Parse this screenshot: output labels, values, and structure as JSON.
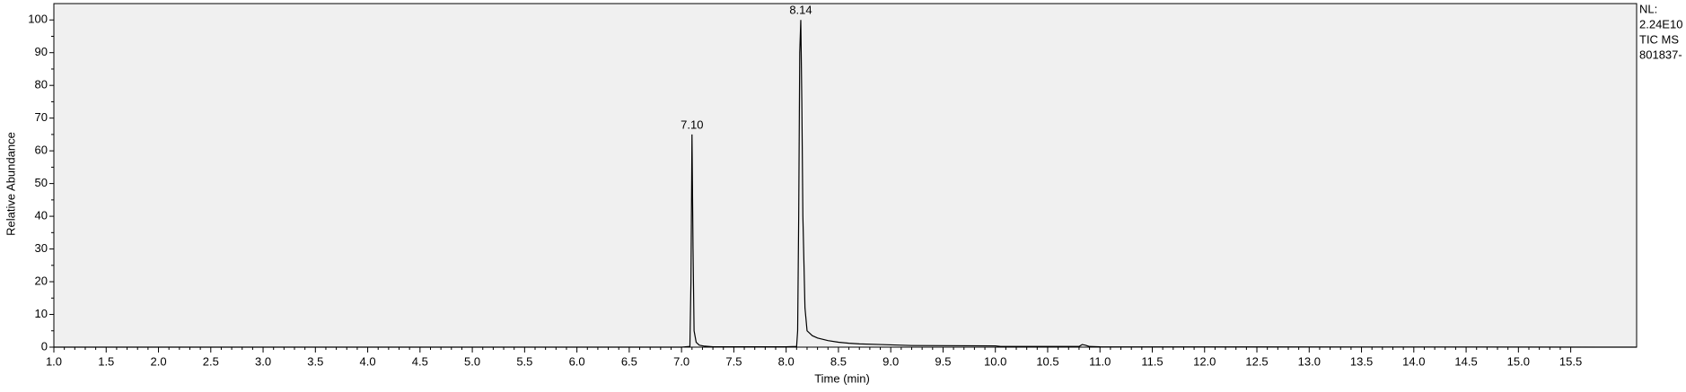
{
  "chart_data": {
    "type": "line",
    "xlabel": "Time (min)",
    "ylabel": "Relative Abundance",
    "side_text": [
      "NL:",
      "2.24E10",
      "TIC  MS",
      "801837-"
    ],
    "xlim": [
      1.0,
      16.13
    ],
    "ylim": [
      0,
      105
    ],
    "xticks": [
      {
        "value": 1.0,
        "label": "1.0"
      },
      {
        "value": 1.5,
        "label": "1.5"
      },
      {
        "value": 2.0,
        "label": "2.0"
      },
      {
        "value": 2.5,
        "label": "2.5"
      },
      {
        "value": 3.0,
        "label": "3.0"
      },
      {
        "value": 3.5,
        "label": "3.5"
      },
      {
        "value": 4.0,
        "label": "4.0"
      },
      {
        "value": 4.5,
        "label": "4.5"
      },
      {
        "value": 5.0,
        "label": "5.0"
      },
      {
        "value": 5.5,
        "label": "5.5"
      },
      {
        "value": 6.0,
        "label": "6.0"
      },
      {
        "value": 6.5,
        "label": "6.5"
      },
      {
        "value": 7.0,
        "label": "7.0"
      },
      {
        "value": 7.5,
        "label": "7.5"
      },
      {
        "value": 8.0,
        "label": "8.0"
      },
      {
        "value": 8.5,
        "label": "8.5"
      },
      {
        "value": 9.0,
        "label": "9.0"
      },
      {
        "value": 9.5,
        "label": "9.5"
      },
      {
        "value": 10.0,
        "label": "10.0"
      },
      {
        "value": 10.5,
        "label": "10.5"
      },
      {
        "value": 11.0,
        "label": "11.0"
      },
      {
        "value": 11.5,
        "label": "11.5"
      },
      {
        "value": 12.0,
        "label": "12.0"
      },
      {
        "value": 12.5,
        "label": "12.5"
      },
      {
        "value": 13.0,
        "label": "13.0"
      },
      {
        "value": 13.5,
        "label": "13.5"
      },
      {
        "value": 14.0,
        "label": "14.0"
      },
      {
        "value": 14.5,
        "label": "14.5"
      },
      {
        "value": 15.0,
        "label": "15.0"
      },
      {
        "value": 15.5,
        "label": "15.5"
      }
    ],
    "yticks": [
      0,
      10,
      20,
      30,
      40,
      50,
      60,
      70,
      80,
      90,
      100
    ],
    "annotations": [
      {
        "text": "7.10",
        "x": 7.1,
        "y": 65
      },
      {
        "text": "8.14",
        "x": 8.14,
        "y": 100
      }
    ],
    "series": [
      {
        "color": "#000000",
        "x": [
          1.0,
          7.0,
          7.08,
          7.09,
          7.1,
          7.11,
          7.12,
          7.14,
          7.17,
          7.22,
          7.3,
          8.0,
          8.1,
          8.11,
          8.12,
          8.13,
          8.14,
          8.15,
          8.16,
          8.18,
          8.2,
          8.25,
          8.3,
          8.4,
          8.5,
          8.6,
          8.7,
          8.9,
          9.1,
          9.2,
          10.0,
          10.05,
          10.8,
          10.83,
          10.86,
          10.9,
          11.0,
          16.13
        ],
        "values": [
          0,
          0,
          0.2,
          20,
          65,
          30,
          5,
          1.5,
          0.6,
          0.3,
          0.1,
          0.1,
          0.2,
          5,
          40,
          90,
          100,
          75,
          40,
          12,
          5,
          3.5,
          2.8,
          2.0,
          1.5,
          1.2,
          1.0,
          0.8,
          0.6,
          0.5,
          0.4,
          0.2,
          0.2,
          0.8,
          0.6,
          0.2,
          0.1,
          0
        ]
      }
    ]
  }
}
